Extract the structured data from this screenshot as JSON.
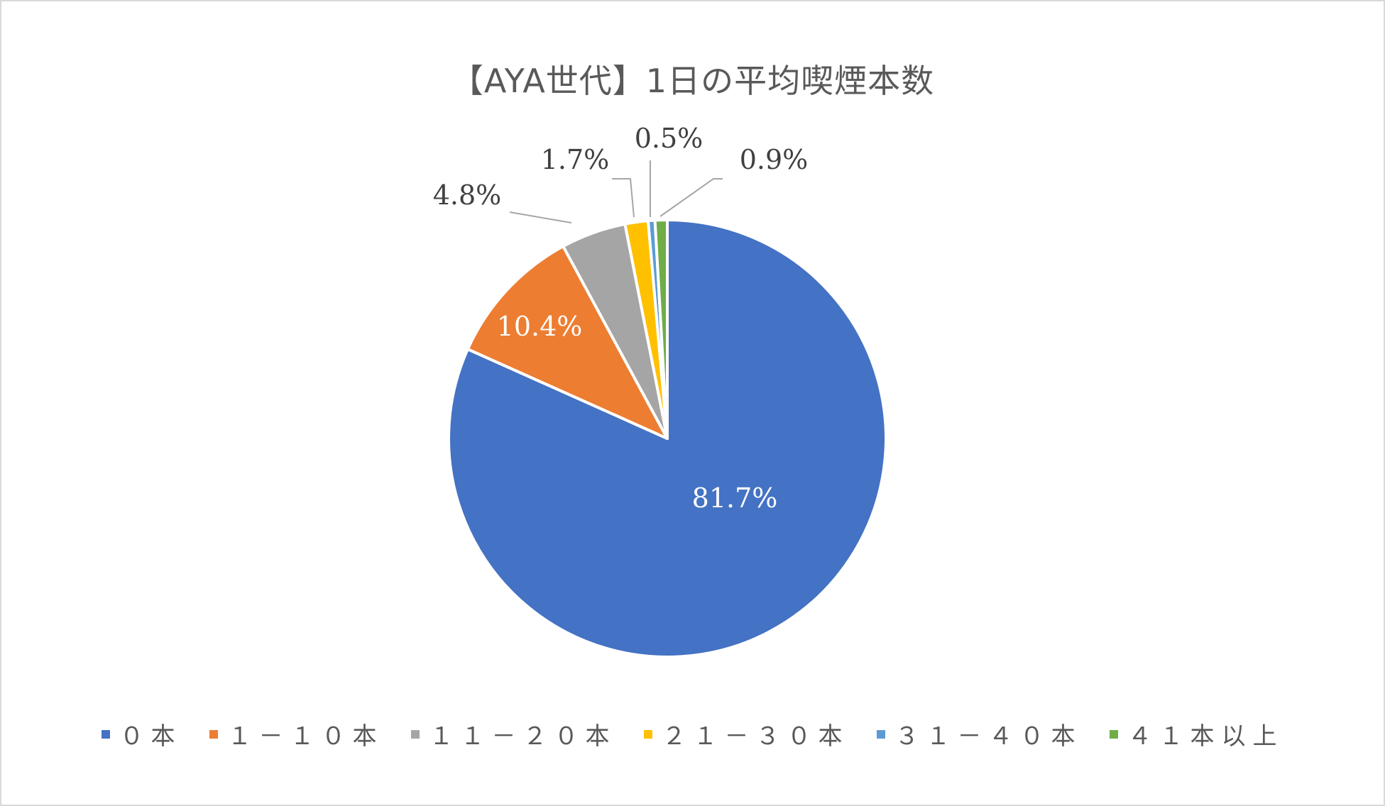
{
  "chart_data": {
    "type": "pie",
    "title": "【AYA世代】1日の平均喫煙本数",
    "categories": [
      "０本",
      "１－１０本",
      "１１－２０本",
      "２１－３０本",
      "３１－４０本",
      "４１本以上"
    ],
    "values": [
      81.7,
      10.4,
      4.8,
      1.7,
      0.5,
      0.9
    ],
    "labels": [
      "81.7%",
      "10.4%",
      "4.8%",
      "1.7%",
      "0.5%",
      "0.9%"
    ],
    "colors": [
      "#4472c4",
      "#ed7d31",
      "#a5a5a5",
      "#ffc000",
      "#5b9bd5",
      "#70ad47"
    ],
    "legend_position": "bottom",
    "start_angle": "12 o'clock, clockwise"
  }
}
